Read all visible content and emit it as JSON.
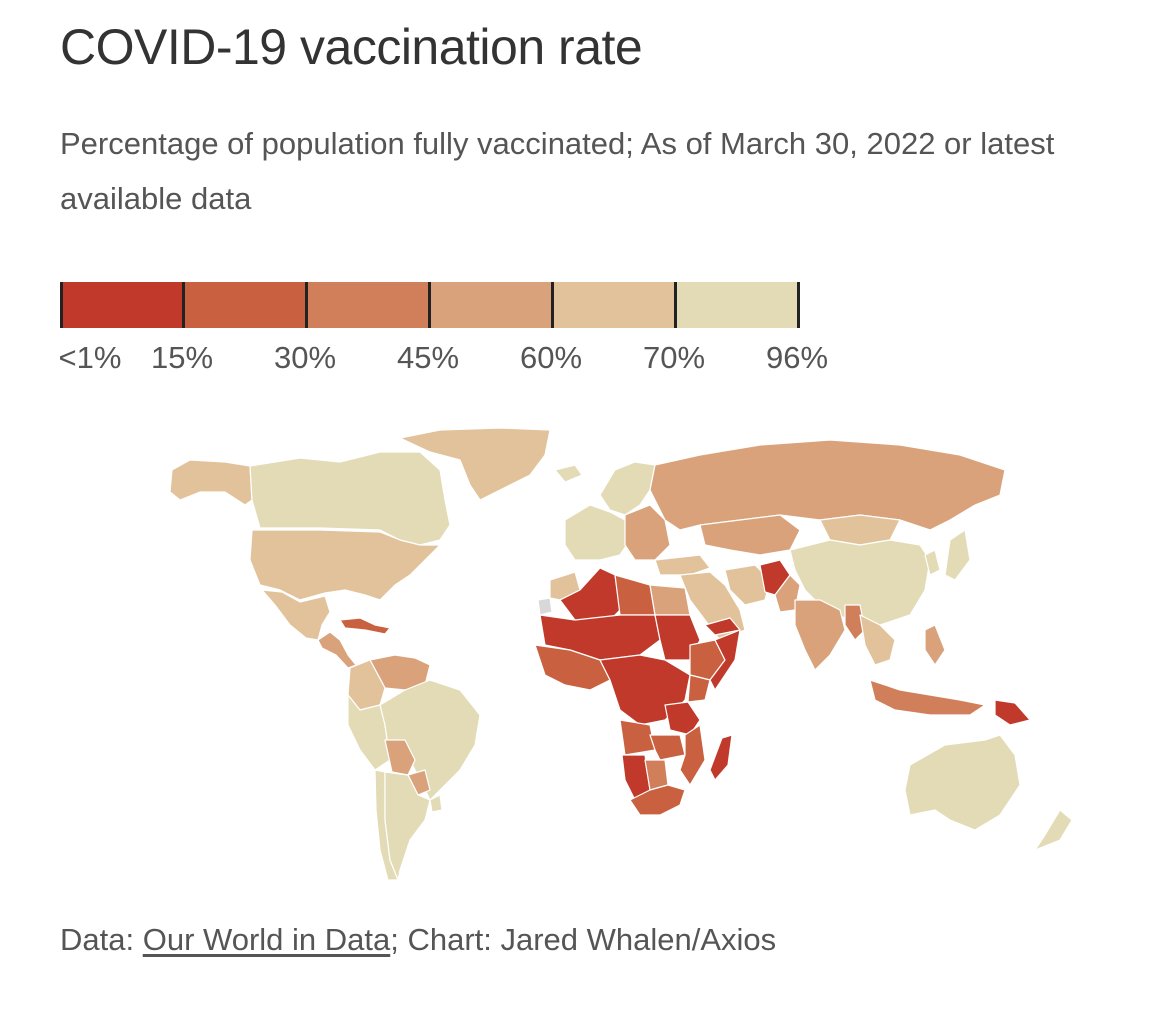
{
  "header": {
    "title": "COVID-19 vaccination rate",
    "subtitle": "Percentage of population fully vaccinated; As of March 30, 2022 or latest available data"
  },
  "legend": {
    "labels": [
      "<1%",
      "15%",
      "30%",
      "45%",
      "60%",
      "70%",
      "96%"
    ],
    "colors": [
      "#c0392b",
      "#c9603f",
      "#d07f5a",
      "#d9a27b",
      "#e2c29a",
      "#e2dbb6"
    ]
  },
  "colors": {
    "bin0": "#c0392b",
    "bin1": "#c9603f",
    "bin2": "#d07f5a",
    "bin3": "#d9a27b",
    "bin4": "#e2c29a",
    "bin5": "#e2dbb6",
    "no_data": "#d8d8d8",
    "border": "#ffffff"
  },
  "map_data": {
    "regions": [
      {
        "name": "Alaska",
        "bin": 4
      },
      {
        "name": "Canada",
        "bin": 5
      },
      {
        "name": "Greenland",
        "bin": 4
      },
      {
        "name": "United States",
        "bin": 4
      },
      {
        "name": "Mexico",
        "bin": 4
      },
      {
        "name": "Central America",
        "bin": 3
      },
      {
        "name": "Caribbean",
        "bin": 1
      },
      {
        "name": "Venezuela",
        "bin": 3
      },
      {
        "name": "Colombia",
        "bin": 4
      },
      {
        "name": "Brazil",
        "bin": 5
      },
      {
        "name": "Peru",
        "bin": 5
      },
      {
        "name": "Bolivia",
        "bin": 3
      },
      {
        "name": "Paraguay",
        "bin": 3
      },
      {
        "name": "Argentina",
        "bin": 5
      },
      {
        "name": "Chile",
        "bin": 5
      },
      {
        "name": "Uruguay",
        "bin": 5
      },
      {
        "name": "Iceland",
        "bin": 5
      },
      {
        "name": "Scandinavia",
        "bin": 5
      },
      {
        "name": "Western Europe",
        "bin": 5
      },
      {
        "name": "Eastern Europe",
        "bin": 3
      },
      {
        "name": "Russia",
        "bin": 3
      },
      {
        "name": "Kazakhstan",
        "bin": 3
      },
      {
        "name": "Turkey",
        "bin": 4
      },
      {
        "name": "Middle East",
        "bin": 4
      },
      {
        "name": "Iran",
        "bin": 4
      },
      {
        "name": "Afghanistan",
        "bin": 0
      },
      {
        "name": "Pakistan",
        "bin": 3
      },
      {
        "name": "India",
        "bin": 3
      },
      {
        "name": "Mongolia",
        "bin": 4
      },
      {
        "name": "China",
        "bin": 5
      },
      {
        "name": "Japan",
        "bin": 5
      },
      {
        "name": "Korea",
        "bin": 5
      },
      {
        "name": "Southeast Asia",
        "bin": 4
      },
      {
        "name": "Myanmar",
        "bin": 2
      },
      {
        "name": "Indonesia",
        "bin": 2
      },
      {
        "name": "Philippines",
        "bin": 3
      },
      {
        "name": "Papua New Guinea",
        "bin": 0
      },
      {
        "name": "Australia",
        "bin": 5
      },
      {
        "name": "New Zealand",
        "bin": 5
      },
      {
        "name": "Morocco",
        "bin": 4
      },
      {
        "name": "Algeria",
        "bin": 0
      },
      {
        "name": "Libya",
        "bin": 1
      },
      {
        "name": "Egypt",
        "bin": 3
      },
      {
        "name": "Sahel",
        "bin": 0
      },
      {
        "name": "West Africa",
        "bin": 1
      },
      {
        "name": "Sudan",
        "bin": 0
      },
      {
        "name": "Ethiopia",
        "bin": 1
      },
      {
        "name": "Somalia",
        "bin": 0
      },
      {
        "name": "Yemen",
        "bin": 0
      },
      {
        "name": "Central Africa",
        "bin": 0
      },
      {
        "name": "Kenya",
        "bin": 1
      },
      {
        "name": "Tanzania",
        "bin": 0
      },
      {
        "name": "Angola",
        "bin": 1
      },
      {
        "name": "Zambia",
        "bin": 1
      },
      {
        "name": "Mozambique",
        "bin": 1
      },
      {
        "name": "Namibia",
        "bin": 0
      },
      {
        "name": "Botswana",
        "bin": 2
      },
      {
        "name": "South Africa",
        "bin": 1
      },
      {
        "name": "Madagascar",
        "bin": 0
      },
      {
        "name": "Western Sahara",
        "bin": -1
      }
    ]
  },
  "footer": {
    "prefix": "Data: ",
    "link_text": "Our World in Data",
    "suffix": "; Chart: Jared Whalen/Axios"
  }
}
